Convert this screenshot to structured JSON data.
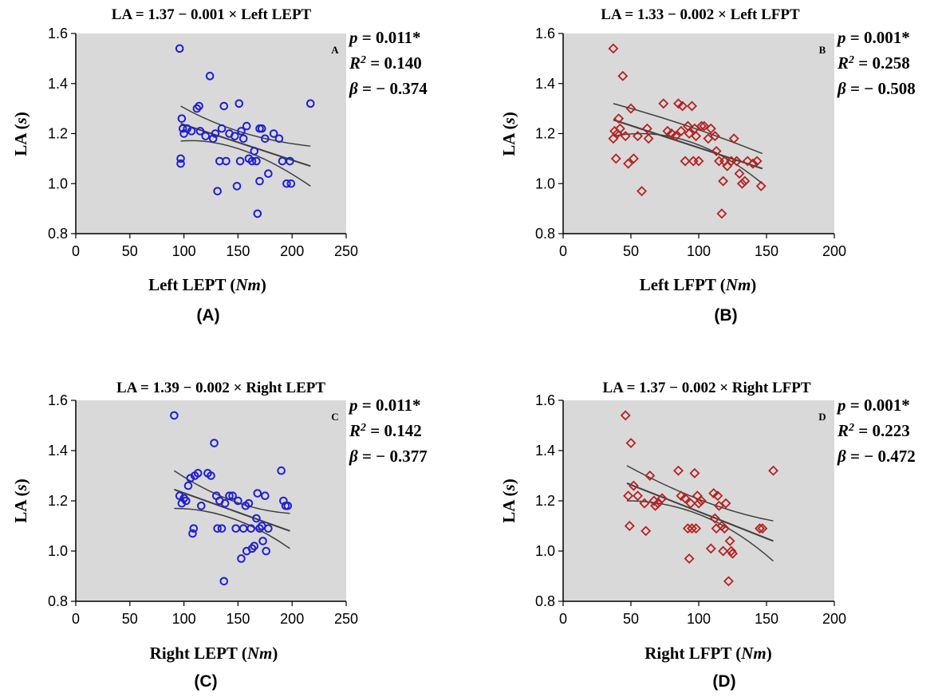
{
  "colors": {
    "plot_background": "#d9d9d9",
    "blue_marker": "#1f1fd6",
    "red_marker": "#b52121",
    "fit_line": "#404040",
    "confidence_band": "#404040"
  },
  "chart_data": [
    {
      "type": "scatter",
      "title": "LA = 1.37 − 0.001 × Left LEPT",
      "panel_letter": "A",
      "caption": "(A)",
      "xlabel": {
        "text": "Left LEPT (",
        "italic": "Nm",
        "close": ")"
      },
      "ylabel": {
        "text": "LA (",
        "italic": "s",
        "close": ")"
      },
      "xlim": [
        0,
        250
      ],
      "ylim": [
        0.8,
        1.6
      ],
      "xticks": [
        0,
        50,
        100,
        150,
        200,
        250
      ],
      "yticks": [
        0.8,
        1.0,
        1.2,
        1.4,
        1.6
      ],
      "marker": "circle",
      "marker_color_key": "blue_marker",
      "stats": {
        "p_label": "p",
        "p": "= 0.011*",
        "r2_label": "R",
        "r2": "= 0.140",
        "beta_label": "β",
        "beta": "= − 0.374"
      },
      "fit": {
        "x_range": [
          97,
          217
        ],
        "intercept": 1.37,
        "slope": -0.001,
        "ci_low": [
          1.17,
          0.99
        ],
        "ci_high": [
          1.31,
          1.15
        ],
        "ci_mid_x": 150,
        "ci_mid": [
          1.135,
          1.205
        ]
      },
      "points": [
        [
          96,
          1.54
        ],
        [
          97,
          1.1
        ],
        [
          97,
          1.08
        ],
        [
          98,
          1.26
        ],
        [
          99,
          1.22
        ],
        [
          100,
          1.2
        ],
        [
          103,
          1.22
        ],
        [
          107,
          1.21
        ],
        [
          112,
          1.3
        ],
        [
          114,
          1.31
        ],
        [
          115,
          1.21
        ],
        [
          120,
          1.19
        ],
        [
          124,
          1.43
        ],
        [
          127,
          1.18
        ],
        [
          129,
          1.2
        ],
        [
          131,
          0.97
        ],
        [
          133,
          1.09
        ],
        [
          135,
          1.22
        ],
        [
          137,
          1.31
        ],
        [
          139,
          1.09
        ],
        [
          142,
          1.2
        ],
        [
          147,
          1.19
        ],
        [
          149,
          0.99
        ],
        [
          151,
          1.32
        ],
        [
          152,
          1.09
        ],
        [
          153,
          1.21
        ],
        [
          155,
          1.18
        ],
        [
          158,
          1.23
        ],
        [
          160,
          1.1
        ],
        [
          163,
          1.09
        ],
        [
          165,
          1.13
        ],
        [
          167,
          1.09
        ],
        [
          168,
          0.88
        ],
        [
          170,
          1.01
        ],
        [
          170,
          1.22
        ],
        [
          172,
          1.22
        ],
        [
          175,
          1.18
        ],
        [
          178,
          1.04
        ],
        [
          183,
          1.2
        ],
        [
          188,
          1.18
        ],
        [
          191,
          1.09
        ],
        [
          195,
          1.0
        ],
        [
          198,
          1.09
        ],
        [
          199,
          1.0
        ],
        [
          217,
          1.32
        ]
      ]
    },
    {
      "type": "scatter",
      "title": "LA = 1.33 − 0.002 × Left LFPT",
      "panel_letter": "B",
      "caption": "(B)",
      "xlabel": {
        "text": "Left LFPT (",
        "italic": "Nm",
        "close": ")"
      },
      "ylabel": {
        "text": "LA (",
        "italic": "s",
        "close": ")"
      },
      "xlim": [
        0,
        200
      ],
      "ylim": [
        0.8,
        1.6
      ],
      "xticks": [
        0,
        50,
        100,
        150,
        200
      ],
      "yticks": [
        0.8,
        1.0,
        1.2,
        1.4,
        1.6
      ],
      "marker": "diamond",
      "marker_color_key": "red_marker",
      "stats": {
        "p_label": "p",
        "p": "= 0.001*",
        "r2_label": "R",
        "r2": "= 0.258",
        "beta_label": "β",
        "beta": "= − 0.508"
      },
      "fit": {
        "x_range": [
          37,
          147
        ],
        "intercept": 1.33,
        "slope": -0.002,
        "ci_low": [
          1.19,
          1.0
        ],
        "ci_high": [
          1.32,
          1.12
        ],
        "ci_mid_x": 92,
        "ci_mid": [
          1.17,
          1.23
        ]
      },
      "points": [
        [
          37,
          1.54
        ],
        [
          37,
          1.18
        ],
        [
          38,
          1.21
        ],
        [
          39,
          1.1
        ],
        [
          40,
          1.2
        ],
        [
          41,
          1.26
        ],
        [
          42,
          1.22
        ],
        [
          44,
          1.43
        ],
        [
          46,
          1.19
        ],
        [
          48,
          1.08
        ],
        [
          50,
          1.3
        ],
        [
          52,
          1.1
        ],
        [
          55,
          1.19
        ],
        [
          58,
          0.97
        ],
        [
          62,
          1.22
        ],
        [
          63,
          1.18
        ],
        [
          74,
          1.32
        ],
        [
          77,
          1.21
        ],
        [
          80,
          1.2
        ],
        [
          83,
          1.19
        ],
        [
          85,
          1.32
        ],
        [
          87,
          1.21
        ],
        [
          88,
          1.31
        ],
        [
          90,
          1.09
        ],
        [
          92,
          1.23
        ],
        [
          93,
          1.2
        ],
        [
          95,
          1.31
        ],
        [
          96,
          1.09
        ],
        [
          97,
          1.22
        ],
        [
          98,
          1.19
        ],
        [
          100,
          1.09
        ],
        [
          102,
          1.23
        ],
        [
          104,
          1.23
        ],
        [
          107,
          1.18
        ],
        [
          109,
          1.22
        ],
        [
          112,
          1.19
        ],
        [
          113,
          1.13
        ],
        [
          115,
          1.09
        ],
        [
          117,
          0.88
        ],
        [
          118,
          1.01
        ],
        [
          119,
          1.09
        ],
        [
          121,
          1.07
        ],
        [
          124,
          1.09
        ],
        [
          126,
          1.18
        ],
        [
          128,
          1.09
        ],
        [
          130,
          1.04
        ],
        [
          132,
          1.0
        ],
        [
          134,
          1.01
        ],
        [
          136,
          1.09
        ],
        [
          140,
          1.08
        ],
        [
          143,
          1.09
        ],
        [
          146,
          0.99
        ]
      ]
    },
    {
      "type": "scatter",
      "title": "LA = 1.39 − 0.002 × Right LEPT",
      "panel_letter": "C",
      "caption": "(C)",
      "xlabel": {
        "text": "Right LEPT (",
        "italic": "Nm",
        "close": ")"
      },
      "ylabel": {
        "text": "LA (",
        "italic": "s",
        "close": ")"
      },
      "xlim": [
        0,
        250
      ],
      "ylim": [
        0.8,
        1.6
      ],
      "xticks": [
        0,
        50,
        100,
        150,
        200,
        250
      ],
      "yticks": [
        0.8,
        1.0,
        1.2,
        1.4,
        1.6
      ],
      "marker": "circle",
      "marker_color_key": "blue_marker",
      "stats": {
        "p_label": "p",
        "p": "= 0.011*",
        "r2_label": "R",
        "r2": "= 0.142",
        "beta_label": "β",
        "beta": "= − 0.377"
      },
      "fit": {
        "x_range": [
          91,
          198
        ],
        "intercept": 1.39,
        "slope": -0.002,
        "ci_low": [
          1.17,
          1.01
        ],
        "ci_high": [
          1.32,
          1.15
        ],
        "ci_mid_x": 145,
        "ci_mid": [
          1.13,
          1.2
        ]
      },
      "points": [
        [
          91,
          1.54
        ],
        [
          96,
          1.22
        ],
        [
          98,
          1.19
        ],
        [
          100,
          1.21
        ],
        [
          102,
          1.2
        ],
        [
          104,
          1.26
        ],
        [
          106,
          1.29
        ],
        [
          108,
          1.07
        ],
        [
          109,
          1.09
        ],
        [
          110,
          1.3
        ],
        [
          113,
          1.31
        ],
        [
          116,
          1.18
        ],
        [
          122,
          1.31
        ],
        [
          125,
          1.3
        ],
        [
          128,
          1.43
        ],
        [
          130,
          1.22
        ],
        [
          131,
          1.09
        ],
        [
          133,
          1.2
        ],
        [
          135,
          1.09
        ],
        [
          137,
          0.88
        ],
        [
          138,
          1.19
        ],
        [
          142,
          1.22
        ],
        [
          145,
          1.22
        ],
        [
          148,
          1.09
        ],
        [
          150,
          1.2
        ],
        [
          153,
          0.97
        ],
        [
          155,
          1.09
        ],
        [
          157,
          1.18
        ],
        [
          158,
          1.0
        ],
        [
          160,
          1.19
        ],
        [
          162,
          1.09
        ],
        [
          163,
          1.01
        ],
        [
          165,
          1.02
        ],
        [
          167,
          1.13
        ],
        [
          168,
          1.23
        ],
        [
          170,
          1.09
        ],
        [
          172,
          1.1
        ],
        [
          173,
          1.04
        ],
        [
          175,
          1.22
        ],
        [
          176,
          1.0
        ],
        [
          178,
          1.09
        ],
        [
          190,
          1.32
        ],
        [
          192,
          1.2
        ],
        [
          194,
          1.18
        ],
        [
          196,
          1.18
        ]
      ]
    },
    {
      "type": "scatter",
      "title": "LA = 1.37 − 0.002 × Right LFPT",
      "panel_letter": "D",
      "caption": "(D)",
      "xlabel": {
        "text": "Right LFPT (",
        "italic": "Nm",
        "close": ")"
      },
      "ylabel": {
        "text": "LA (",
        "italic": "s",
        "close": ")"
      },
      "xlim": [
        0,
        200
      ],
      "ylim": [
        0.8,
        1.6
      ],
      "xticks": [
        0,
        50,
        100,
        150,
        200
      ],
      "yticks": [
        0.8,
        1.0,
        1.2,
        1.4,
        1.6
      ],
      "marker": "diamond",
      "marker_color_key": "red_marker",
      "stats": {
        "p_label": "p",
        "p": "= 0.001*",
        "r2_label": "R",
        "r2": "= 0.223",
        "beta_label": "β",
        "beta": "= − 0.472"
      },
      "fit": {
        "x_range": [
          47,
          155
        ],
        "intercept": 1.37,
        "slope": -0.002,
        "ci_low": [
          1.2,
          0.96
        ],
        "ci_high": [
          1.34,
          1.12
        ],
        "ci_mid_x": 105,
        "ci_mid": [
          1.14,
          1.2
        ]
      },
      "points": [
        [
          46,
          1.54
        ],
        [
          48,
          1.22
        ],
        [
          49,
          1.1
        ],
        [
          50,
          1.43
        ],
        [
          52,
          1.26
        ],
        [
          55,
          1.22
        ],
        [
          60,
          1.19
        ],
        [
          61,
          1.08
        ],
        [
          64,
          1.3
        ],
        [
          67,
          1.2
        ],
        [
          68,
          1.18
        ],
        [
          70,
          1.19
        ],
        [
          73,
          1.21
        ],
        [
          85,
          1.32
        ],
        [
          87,
          1.22
        ],
        [
          90,
          1.21
        ],
        [
          92,
          1.09
        ],
        [
          93,
          0.97
        ],
        [
          94,
          1.19
        ],
        [
          95,
          1.09
        ],
        [
          97,
          1.31
        ],
        [
          98,
          1.09
        ],
        [
          99,
          1.22
        ],
        [
          100,
          1.19
        ],
        [
          102,
          1.2
        ],
        [
          109,
          1.01
        ],
        [
          111,
          1.23
        ],
        [
          112,
          1.13
        ],
        [
          113,
          1.09
        ],
        [
          114,
          1.22
        ],
        [
          115,
          1.18
        ],
        [
          117,
          1.1
        ],
        [
          118,
          1.0
        ],
        [
          119,
          1.09
        ],
        [
          120,
          1.19
        ],
        [
          122,
          0.88
        ],
        [
          123,
          1.04
        ],
        [
          124,
          1.0
        ],
        [
          125,
          0.99
        ],
        [
          145,
          1.09
        ],
        [
          147,
          1.09
        ],
        [
          155,
          1.32
        ]
      ]
    }
  ]
}
